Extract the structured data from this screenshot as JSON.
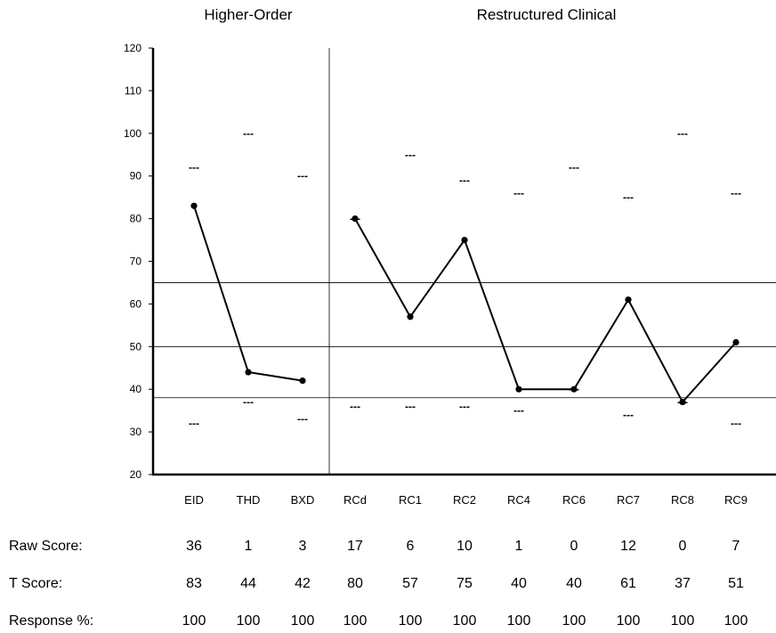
{
  "chart_data": {
    "type": "line",
    "section_titles": [
      "Higher-Order",
      "Restructured Clinical"
    ],
    "groups": [
      {
        "title": "Higher-Order",
        "categories": [
          "EID",
          "THD",
          "BXD"
        ]
      },
      {
        "title": "Restructured Clinical",
        "categories": [
          "RCd",
          "RC1",
          "RC2",
          "RC4",
          "RC6",
          "RC7",
          "RC8",
          "RC9"
        ]
      }
    ],
    "categories": [
      "EID",
      "THD",
      "BXD",
      "RCd",
      "RC1",
      "RC2",
      "RC4",
      "RC6",
      "RC7",
      "RC8",
      "RC9"
    ],
    "values": [
      83,
      44,
      42,
      80,
      57,
      75,
      40,
      40,
      61,
      37,
      51
    ],
    "upper_markers": [
      92,
      100,
      90,
      80,
      95,
      89,
      86,
      92,
      85,
      100,
      86
    ],
    "lower_markers": [
      32,
      37,
      33,
      36,
      36,
      36,
      35,
      40,
      34,
      37,
      32
    ],
    "marker_text": "---",
    "reference_lines": [
      65,
      50,
      38
    ],
    "ylim": [
      20,
      120
    ],
    "yticks": [
      20,
      30,
      40,
      50,
      60,
      70,
      80,
      90,
      100,
      110,
      120
    ],
    "grid": false,
    "table": {
      "rows": [
        {
          "label": "Raw Score:",
          "values": [
            "36",
            "1",
            "3",
            "17",
            "6",
            "10",
            "1",
            "0",
            "12",
            "0",
            "7"
          ]
        },
        {
          "label": "T Score:",
          "values": [
            "83",
            "44",
            "42",
            "80",
            "57",
            "75",
            "40",
            "40",
            "61",
            "37",
            "51"
          ]
        },
        {
          "label": "Response %:",
          "values": [
            "100",
            "100",
            "100",
            "100",
            "100",
            "100",
            "100",
            "100",
            "100",
            "100",
            "100"
          ]
        }
      ]
    }
  }
}
